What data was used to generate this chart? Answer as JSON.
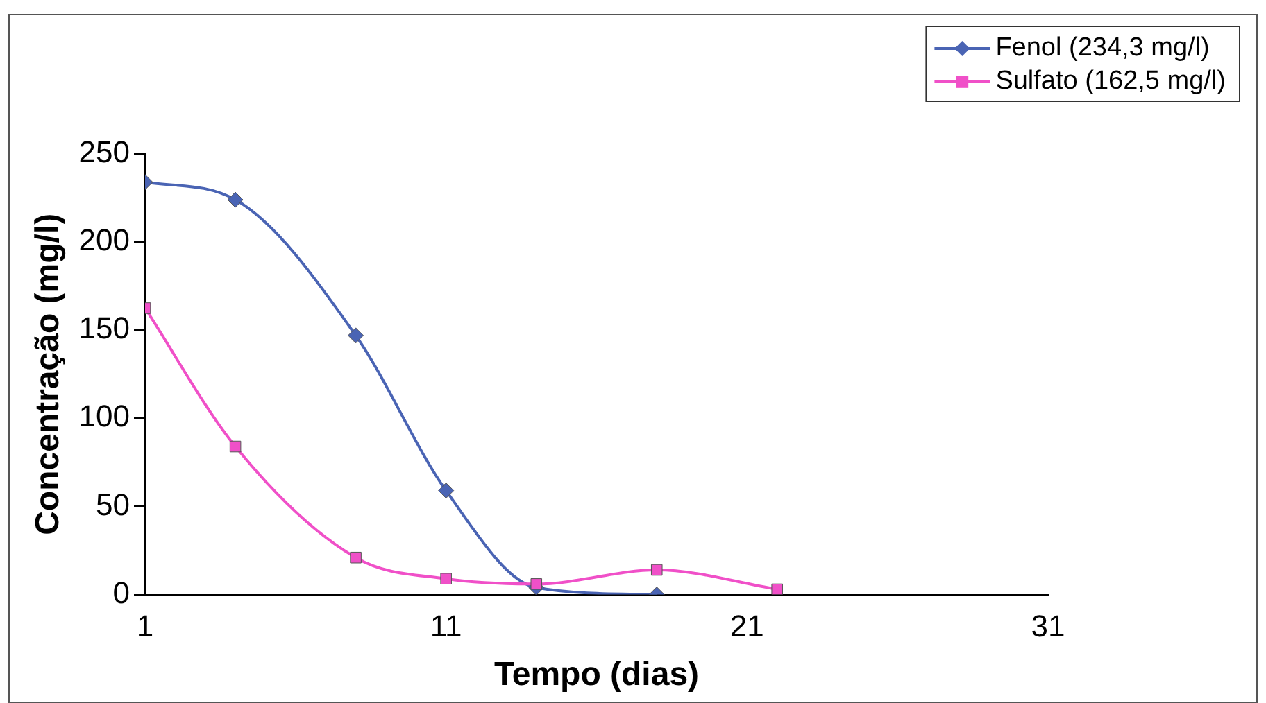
{
  "chart_data": {
    "type": "line",
    "xlabel": "Tempo (dias)",
    "ylabel": "Concentração (mg/l)",
    "xlim": [
      1,
      31
    ],
    "xticks": [
      1,
      11,
      21,
      31
    ],
    "ylim": [
      0,
      250
    ],
    "yticks": [
      0,
      50,
      100,
      150,
      200,
      250
    ],
    "grid": false,
    "legend": "top right",
    "line_style": "solid",
    "series": [
      {
        "name": "Fenol (234,3 mg/l)",
        "color": "#4a64b4",
        "marker": "diamond",
        "x": [
          1,
          4,
          8,
          11,
          14,
          18
        ],
        "values": [
          234,
          224,
          147,
          59,
          4,
          0
        ]
      },
      {
        "name": "Sulfato (162,5 mg/l)",
        "color": "#f050c8",
        "marker": "square",
        "x": [
          1,
          4,
          8,
          11,
          14,
          18,
          22
        ],
        "values": [
          162.5,
          84,
          21,
          9,
          6,
          14,
          3
        ]
      }
    ]
  }
}
